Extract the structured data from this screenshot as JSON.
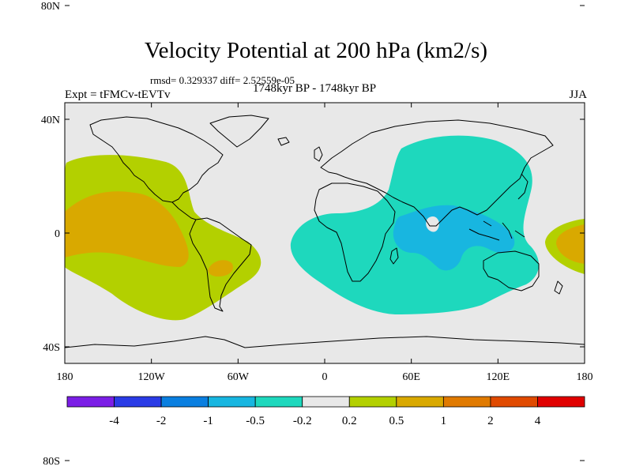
{
  "title": "Velocity Potential at 200 hPa (km2/s)",
  "stats": "rmsd= 0.329337 diff= 2.52559e-05",
  "expt": "Expt = tFMCv-tEVTv",
  "period": "1748kyr BP - 1748kyr BP",
  "season": "JJA",
  "map": {
    "lat_ticks": [
      {
        "value": 80,
        "label": "80N"
      },
      {
        "value": 40,
        "label": "40N"
      },
      {
        "value": 0,
        "label": "0"
      },
      {
        "value": -40,
        "label": "40S"
      },
      {
        "value": -80,
        "label": "80S"
      }
    ],
    "lon_ticks": [
      {
        "value": -180,
        "label": "180"
      },
      {
        "value": -120,
        "label": "120W"
      },
      {
        "value": -60,
        "label": "60W"
      },
      {
        "value": 0,
        "label": "0"
      },
      {
        "value": 60,
        "label": "60E"
      },
      {
        "value": 120,
        "label": "120E"
      },
      {
        "value": 180,
        "label": "180"
      }
    ],
    "background_color": "#e8e8e8",
    "regions": [
      {
        "name": "pacific-positive-outer",
        "level": "0.2 to 0.5",
        "color": "#b3d000"
      },
      {
        "name": "pacific-positive-inner",
        "level": "0.5 to 1",
        "color": "#d9a900"
      },
      {
        "name": "andes-positive-inner",
        "level": "0.5 to 1",
        "color": "#d9a900"
      },
      {
        "name": "west-pacific-positive-outer",
        "level": "0.2 to 0.5",
        "color": "#b3d000"
      },
      {
        "name": "west-pacific-positive-inner",
        "level": "0.5 to 1",
        "color": "#d9a900"
      },
      {
        "name": "eastern-hemisphere-negative-outer",
        "level": "-0.5 to -0.2",
        "color": "#1ed8bd"
      },
      {
        "name": "indian-ocean-negative-inner",
        "level": "-1 to -0.5",
        "color": "#18b6e0"
      }
    ]
  },
  "colorbar": {
    "colors": [
      "#7b1ee6",
      "#2a3be6",
      "#0a7fe0",
      "#18b6e0",
      "#1ed8bd",
      "#e8e8e8",
      "#b3d000",
      "#d9a900",
      "#e07a00",
      "#e04a00",
      "#e00000"
    ],
    "labels": [
      "-4",
      "-2",
      "-1",
      "-0.5",
      "-0.2",
      "0.2",
      "0.5",
      "1",
      "2",
      "4"
    ]
  }
}
